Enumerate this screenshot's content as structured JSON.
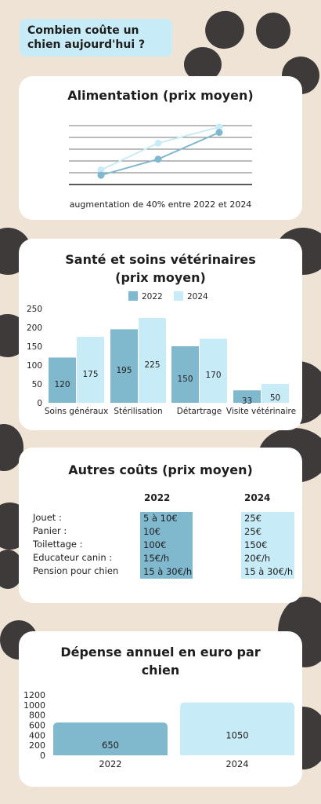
{
  "page_title": "Combien coûte un chien aujourd'hui ?",
  "colors": {
    "c2022": "#80b9ce",
    "c2024": "#c8ecf7",
    "background": "#efe3d6",
    "paw": "#3d3a39"
  },
  "food": {
    "title": "Alimentation (prix moyen)",
    "caption": "augmentation de 40% entre 2022 et 2024"
  },
  "health": {
    "title_line1": "Santé et soins vétérinaires",
    "title_line2": "(prix moyen)",
    "legend": [
      "2022",
      "2024"
    ],
    "yticks": [
      "250",
      "200",
      "150",
      "100",
      "50",
      "0"
    ]
  },
  "other": {
    "title": "Autres coûts (prix moyen)",
    "col_2022": "2022",
    "col_2024": "2024",
    "rows": [
      {
        "label": "Jouet :",
        "v2022": "5 à 10€",
        "v2024": "25€"
      },
      {
        "label": "Panier :",
        "v2022": "10€",
        "v2024": "25€"
      },
      {
        "label": "Toilettage :",
        "v2022": "100€",
        "v2024": "150€"
      },
      {
        "label": "Educateur canin :",
        "v2022": "15€/h",
        "v2024": "20€/h"
      },
      {
        "label": "Pension pour chien",
        "v2022": "15 à 30€/h",
        "v2024": "15 à 30€/h"
      }
    ]
  },
  "annual": {
    "title_line1": "Dépense annuel en euro par",
    "title_line2": "chien",
    "yticks": [
      "1200",
      "1000",
      "800",
      "600",
      "400",
      "200",
      "0"
    ]
  },
  "chart_data": [
    {
      "type": "line",
      "title": "Alimentation (prix moyen)",
      "x": [
        1,
        2,
        3
      ],
      "series": [
        {
          "name": "2022",
          "color": "#80b9ce",
          "values": [
            1.0,
            1.15,
            1.4
          ]
        },
        {
          "name": "2024",
          "color": "#c8ecf7",
          "values": [
            1.05,
            1.3,
            1.45
          ]
        }
      ],
      "grid": true
    },
    {
      "type": "bar",
      "title": "Santé et soins vétérinaires (prix moyen)",
      "categories": [
        "Soins généraux",
        "Stérilisation",
        "Détartrage",
        "Visite vétérinaire"
      ],
      "series": [
        {
          "name": "2022",
          "color": "#80b9ce",
          "values": [
            120,
            195,
            150,
            33
          ]
        },
        {
          "name": "2024",
          "color": "#c8ecf7",
          "values": [
            175,
            225,
            170,
            50
          ]
        }
      ],
      "ylim": [
        0,
        250
      ],
      "legend": "top"
    },
    {
      "type": "bar",
      "title": "Dépense annuel en euro par chien",
      "categories": [
        "2022",
        "2024"
      ],
      "values": [
        650,
        1050
      ],
      "colors": [
        "#80b9ce",
        "#c8ecf7"
      ],
      "ylim": [
        0,
        1200
      ]
    }
  ]
}
